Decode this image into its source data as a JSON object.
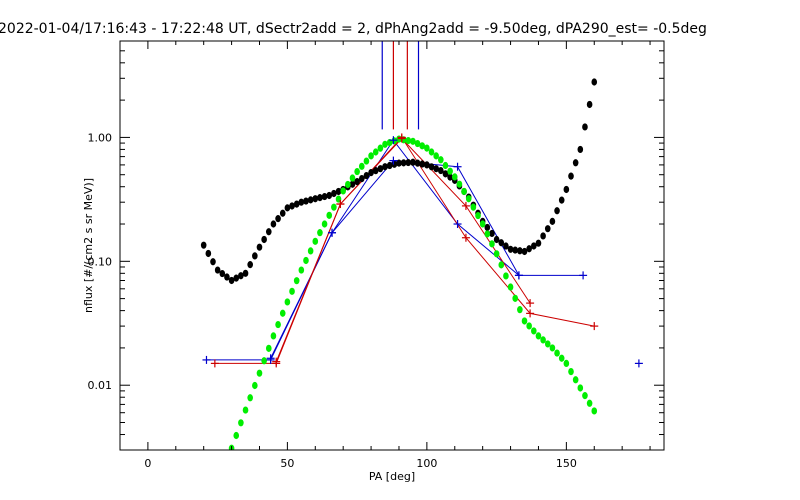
{
  "chart_data": {
    "type": "scatter",
    "title": "2022-01-04/17:16:43 - 17:22:48 UT, dSectr2add = 2, dPhAng2add = -9.50deg, dPA290_est=  -0.5deg",
    "xlabel": "PA [deg]",
    "ylabel": "nflux [#/(cm2 s sr MeV)]",
    "xlim": [
      -10,
      185
    ],
    "ylim": [
      0.003,
      6
    ],
    "yscale": "log",
    "x_ticks": [
      0,
      50,
      100,
      150
    ],
    "x_tick_labels": [
      "0",
      "50",
      "100",
      "150"
    ],
    "y_ticks": [
      0.01,
      0.1,
      1.0
    ],
    "y_tick_labels": [
      "0.01",
      "0.10",
      "1.00"
    ],
    "grid": false,
    "colors": {
      "blue": "#0000cc",
      "red": "#cc0000",
      "black": "#000000",
      "green": "#00ee00"
    },
    "series": [
      {
        "color": "#0000cc",
        "style": "line-plus",
        "x": [
          21,
          44,
          66,
          88,
          111,
          133,
          156
        ],
        "y": [
          0.016,
          0.016,
          0.17,
          0.95,
          0.2,
          0.077,
          0.077
        ]
      },
      {
        "color": "#0000cc",
        "style": "line-plus",
        "x": [
          44,
          66,
          88,
          111,
          133
        ],
        "y": [
          0.0165,
          0.17,
          0.65,
          0.58,
          0.077
        ]
      },
      {
        "color": "#0000cc",
        "style": "plus",
        "x": [
          176
        ],
        "y": [
          0.015
        ]
      },
      {
        "color": "#cc0000",
        "style": "line-plus",
        "x": [
          24,
          46,
          69,
          91,
          114,
          137,
          160
        ],
        "y": [
          0.015,
          0.015,
          0.29,
          1.0,
          0.155,
          0.038,
          0.03
        ]
      },
      {
        "color": "#cc0000",
        "style": "line-plus",
        "x": [
          46,
          69,
          91,
          114,
          137
        ],
        "y": [
          0.0155,
          0.29,
          0.98,
          0.28,
          0.046
        ]
      },
      {
        "color": "#000000",
        "style": "dots",
        "x": [
          20,
          25,
          30,
          35,
          40,
          45,
          50,
          55,
          60,
          65,
          70,
          75,
          80,
          85,
          90,
          95,
          100,
          105,
          110,
          115,
          120,
          125,
          130,
          135,
          140,
          145,
          150,
          155,
          160
        ],
        "y": [
          0.135,
          0.085,
          0.07,
          0.08,
          0.13,
          0.2,
          0.27,
          0.3,
          0.32,
          0.34,
          0.38,
          0.44,
          0.52,
          0.58,
          0.62,
          0.63,
          0.6,
          0.54,
          0.45,
          0.33,
          0.21,
          0.15,
          0.125,
          0.12,
          0.14,
          0.21,
          0.38,
          0.8,
          2.8
        ]
      },
      {
        "color": "#00ee00",
        "style": "dots",
        "x": [
          30,
          35,
          40,
          45,
          50,
          55,
          60,
          65,
          70,
          75,
          80,
          85,
          90,
          95,
          100,
          105,
          110,
          115,
          120,
          125,
          130,
          135,
          140,
          145,
          150,
          155,
          160
        ],
        "y": [
          0.0031,
          0.0063,
          0.0125,
          0.025,
          0.047,
          0.085,
          0.145,
          0.235,
          0.37,
          0.53,
          0.71,
          0.88,
          0.97,
          0.93,
          0.82,
          0.66,
          0.48,
          0.32,
          0.2,
          0.115,
          0.062,
          0.033,
          0.025,
          0.02,
          0.015,
          0.0095,
          0.0062
        ]
      }
    ],
    "vertical_lines": [
      {
        "x": 84,
        "color": "#0000cc"
      },
      {
        "x": 97,
        "color": "#0000cc"
      },
      {
        "x": 88,
        "color": "#cc0000"
      },
      {
        "x": 93,
        "color": "#cc0000"
      }
    ]
  }
}
